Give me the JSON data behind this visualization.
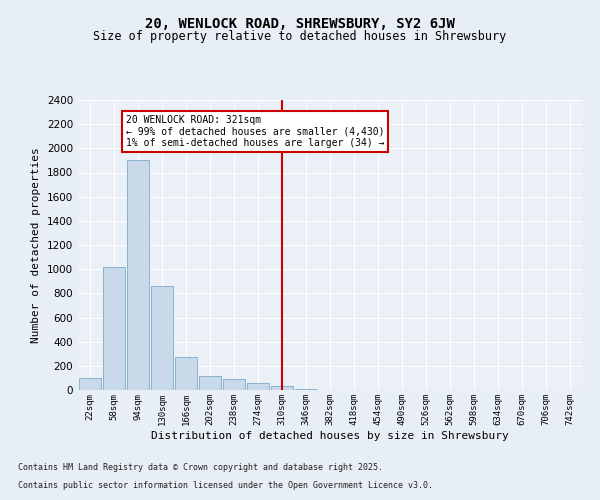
{
  "title1": "20, WENLOCK ROAD, SHREWSBURY, SY2 6JW",
  "title2": "Size of property relative to detached houses in Shrewsbury",
  "xlabel": "Distribution of detached houses by size in Shrewsbury",
  "ylabel": "Number of detached properties",
  "categories": [
    "22sqm",
    "58sqm",
    "94sqm",
    "130sqm",
    "166sqm",
    "202sqm",
    "238sqm",
    "274sqm",
    "310sqm",
    "346sqm",
    "382sqm",
    "418sqm",
    "454sqm",
    "490sqm",
    "526sqm",
    "562sqm",
    "598sqm",
    "634sqm",
    "670sqm",
    "706sqm",
    "742sqm"
  ],
  "values": [
    100,
    1020,
    1900,
    860,
    270,
    120,
    90,
    60,
    30,
    10,
    0,
    0,
    0,
    0,
    0,
    0,
    0,
    0,
    0,
    0,
    0
  ],
  "bar_color": "#c9d9ea",
  "bar_edge_color": "#7aaac8",
  "vline_x": 8,
  "vline_color": "#cc0000",
  "annotation_title": "20 WENLOCK ROAD: 321sqm",
  "annotation_line1": "← 99% of detached houses are smaller (4,430)",
  "annotation_line2": "1% of semi-detached houses are larger (34) →",
  "annotation_box_color": "#cc0000",
  "ylim": [
    0,
    2400
  ],
  "footnote1": "Contains HM Land Registry data © Crown copyright and database right 2025.",
  "footnote2": "Contains public sector information licensed under the Open Government Licence v3.0.",
  "bg_color": "#e8eef5",
  "plot_bg_color": "#eaf0f6",
  "title1_fontsize": 10,
  "title2_fontsize": 8.5,
  "xlabel_fontsize": 8,
  "ylabel_fontsize": 8
}
